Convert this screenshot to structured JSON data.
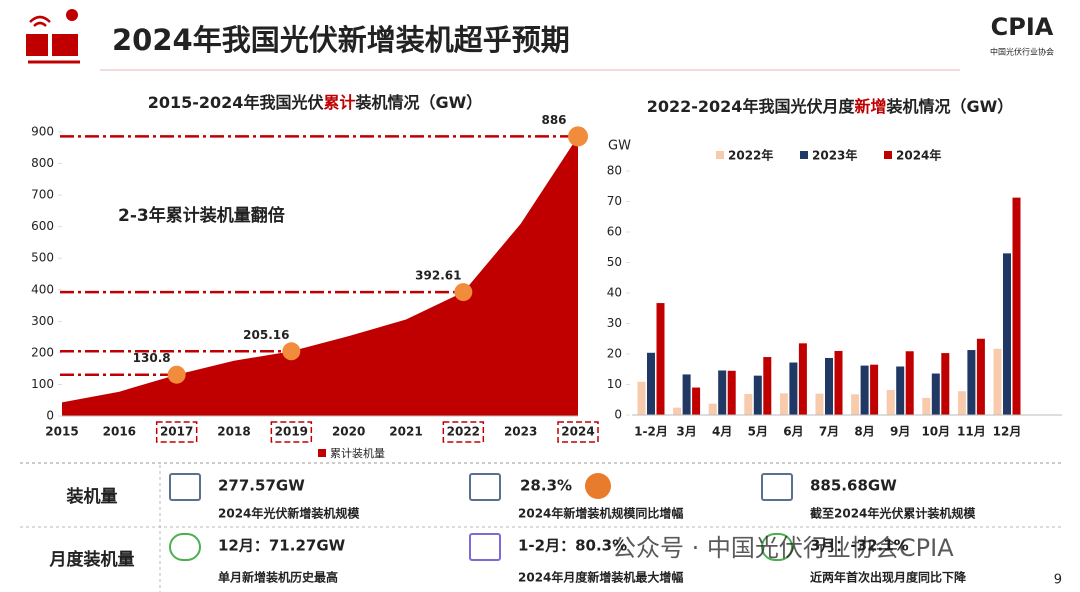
{
  "header": {
    "title": "2024年我国光伏新增装机超乎预期",
    "logo": "CPIA",
    "logo_subtitle": "中国光伏行业协会"
  },
  "chart_data": [
    {
      "type": "area",
      "title": "2015-2024年我国光伏累计装机情况（GW）",
      "title_highlight": "累计",
      "categories": [
        "2015",
        "2016",
        "2017",
        "2018",
        "2019",
        "2020",
        "2021",
        "2022",
        "2023",
        "2024"
      ],
      "series": [
        {
          "name": "累计装机量",
          "color": "#c00000",
          "values": [
            43,
            77,
            130.8,
            175,
            205.16,
            253,
            306,
            392.61,
            609,
            886
          ],
          "value_labels": [
            null,
            null,
            "130.8",
            null,
            "205.16",
            null,
            null,
            "392.61",
            null,
            "886"
          ]
        }
      ],
      "ylim": [
        0,
        900
      ],
      "yticks": [
        0,
        100,
        200,
        300,
        400,
        500,
        600,
        700,
        800,
        900
      ],
      "annotation": "2-3年累计装机量翻倍",
      "legend": "bottom",
      "marker_color": "#f08c3c"
    },
    {
      "type": "bar",
      "title": "2022-2024年我国光伏月度新增装机情况（GW）",
      "title_highlight": "新增",
      "ylabel": "GW",
      "categories": [
        "1-2月",
        "3月",
        "4月",
        "5月",
        "6月",
        "7月",
        "8月",
        "9月",
        "10月",
        "11月",
        "12月"
      ],
      "series": [
        {
          "name": "2022年",
          "color": "#f8cbad",
          "values": [
            10.9,
            2.4,
            3.7,
            6.9,
            7.1,
            7.0,
            6.8,
            8.2,
            5.6,
            7.8,
            21.7
          ]
        },
        {
          "name": "2023年",
          "color": "#203864",
          "values": [
            20.4,
            13.3,
            14.6,
            12.9,
            17.2,
            18.7,
            16.2,
            15.9,
            13.6,
            21.3,
            53.0
          ]
        },
        {
          "name": "2024年",
          "color": "#c00000",
          "values": [
            36.7,
            9.0,
            14.5,
            19.0,
            23.5,
            21.0,
            16.5,
            20.9,
            20.3,
            25.0,
            71.27
          ]
        }
      ],
      "ylim": [
        0,
        80
      ],
      "yticks": [
        0,
        10,
        20,
        30,
        40,
        50,
        60,
        70,
        80
      ],
      "legend": "top"
    }
  ],
  "stats": {
    "rows": [
      {
        "label": "装机量",
        "items": [
          {
            "value": "277.57GW",
            "desc": "2024年光伏新增装机规模"
          },
          {
            "value": "28.3%",
            "desc": "2024年新增装机规模同比增幅"
          },
          {
            "value": "885.68GW",
            "desc": "截至2024年光伏累计装机规模"
          }
        ]
      },
      {
        "label": "月度装机量",
        "items": [
          {
            "value": "12月：71.27GW",
            "desc": "单月新增装机历史最高"
          },
          {
            "value": "1-2月：80.3%",
            "desc": "2024年月度新增装机最大增幅"
          },
          {
            "value": "3月：-32.1%",
            "desc": "近两年首次出现月度同比下降"
          }
        ]
      }
    ]
  },
  "watermark": "公众号 · 中国光伏行业协会CPIA",
  "page_number": "9"
}
